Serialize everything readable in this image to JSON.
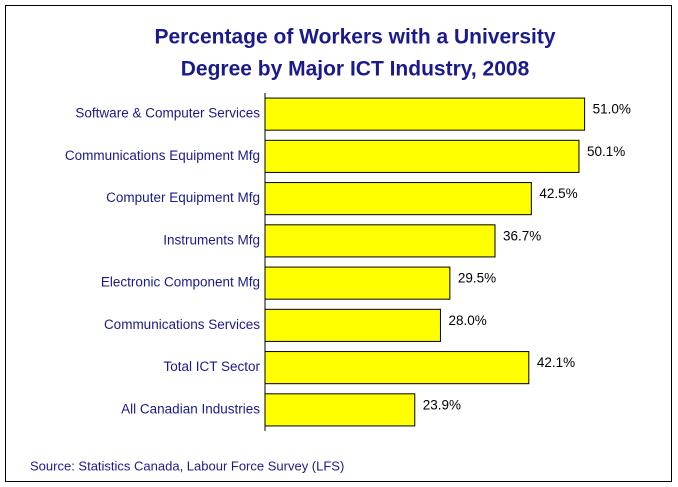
{
  "chart_data": {
    "type": "bar",
    "orientation": "horizontal",
    "title": [
      "Percentage of Workers with a University",
      "Degree by Major ICT Industry, 2008"
    ],
    "categories": [
      "Software & Computer Services",
      "Communications Equipment Mfg",
      "Computer Equipment Mfg",
      "Instruments Mfg",
      "Electronic Component Mfg",
      "Communications Services",
      "Total ICT Sector",
      "All Canadian Industries"
    ],
    "values": [
      51.0,
      50.1,
      42.5,
      36.7,
      29.5,
      28.0,
      42.1,
      23.9
    ],
    "value_labels": [
      "51.0%",
      "50.1%",
      "42.5%",
      "36.7%",
      "29.5%",
      "28.0%",
      "42.1%",
      "23.9%"
    ],
    "color": "#ffff00",
    "xlim": [
      0,
      60
    ],
    "source": "Source: Statistics Canada, Labour Force Survey (LFS)"
  }
}
